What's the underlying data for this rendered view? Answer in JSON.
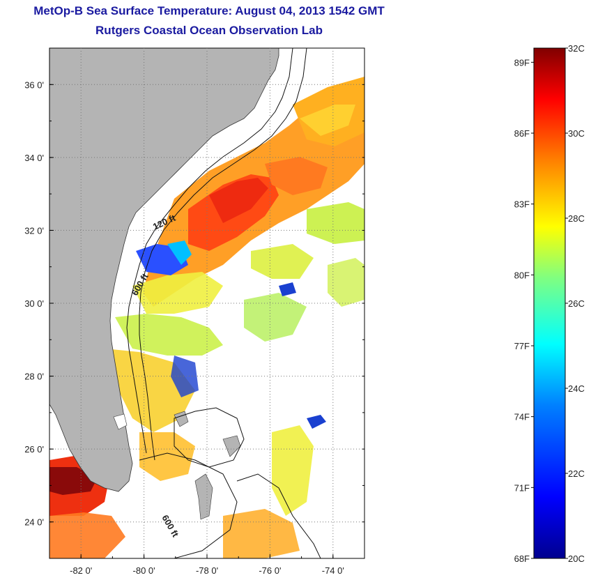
{
  "header": {
    "title": "MetOp-B Sea Surface Temperature:  August 04, 2013 1542 GMT",
    "subtitle": "Rutgers Coastal Ocean Observation Lab"
  },
  "map": {
    "lon_range": [
      -83,
      -73
    ],
    "lat_range": [
      23,
      37
    ],
    "lon_ticks": [
      {
        "value": -82,
        "label": "-82 0'"
      },
      {
        "value": -80,
        "label": "-80 0'"
      },
      {
        "value": -78,
        "label": "-78 0'"
      },
      {
        "value": -76,
        "label": "-76 0'"
      },
      {
        "value": -74,
        "label": "-74 0'"
      }
    ],
    "lat_ticks": [
      {
        "value": 24,
        "label": "24 0'"
      },
      {
        "value": 26,
        "label": "26 0'"
      },
      {
        "value": 28,
        "label": "28 0'"
      },
      {
        "value": 30,
        "label": "30 0'"
      },
      {
        "value": 32,
        "label": "32 0'"
      },
      {
        "value": 34,
        "label": "34 0'"
      },
      {
        "value": 36,
        "label": "36 0'"
      }
    ],
    "contour_labels": {
      "c120": "120 ft",
      "c600a": "600 ft",
      "c600b": "600 ft"
    },
    "colors": {
      "land": "#b4b4b4",
      "cloud": "#ffffff",
      "grid": "#888888"
    }
  },
  "colorbar": {
    "min_c": 20,
    "max_c": 32,
    "fahrenheit_labels": [
      "89F",
      "86F",
      "83F",
      "80F",
      "77F",
      "74F",
      "71F",
      "68F"
    ],
    "celsius_labels": [
      "32C",
      "30C",
      "28C",
      "26C",
      "24C",
      "22C",
      "20C"
    ],
    "colors": [
      "#00008f",
      "#0000ff",
      "#0080ff",
      "#00ffff",
      "#80ff80",
      "#ffff00",
      "#ff8000",
      "#ff0000",
      "#800000"
    ]
  }
}
